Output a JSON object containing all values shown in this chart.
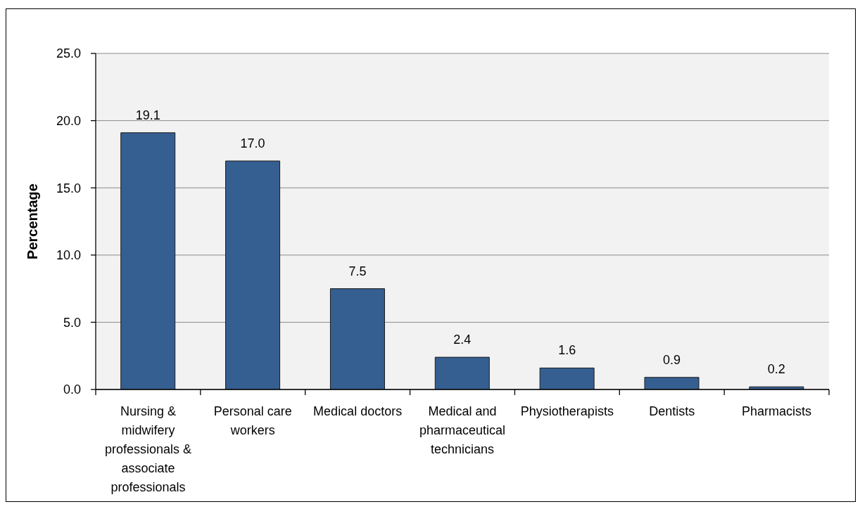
{
  "chart_data": {
    "type": "bar",
    "ylabel": "Percentage",
    "categories": [
      "Nursing & midwifery professionals & associate professionals",
      "Personal care workers",
      "Medical doctors",
      "Medical and pharmaceutical technicians",
      "Physiotherapists",
      "Dentists",
      "Pharmacists"
    ],
    "values": [
      19.1,
      17.0,
      7.5,
      2.4,
      1.6,
      0.9,
      0.2
    ],
    "value_labels": [
      "19.1",
      "17.0",
      "7.5",
      "2.4",
      "1.6",
      "0.9",
      "0.2"
    ],
    "color": "#365f91",
    "ylim": [
      0,
      25
    ],
    "yticks": [
      {
        "value": 0,
        "label": "0.0"
      },
      {
        "value": 5,
        "label": "5.0"
      },
      {
        "value": 10,
        "label": "10.0"
      },
      {
        "value": 15,
        "label": "15.0"
      },
      {
        "value": 20,
        "label": "20.0"
      },
      {
        "value": 25,
        "label": "25.0"
      }
    ],
    "grid": "y"
  }
}
